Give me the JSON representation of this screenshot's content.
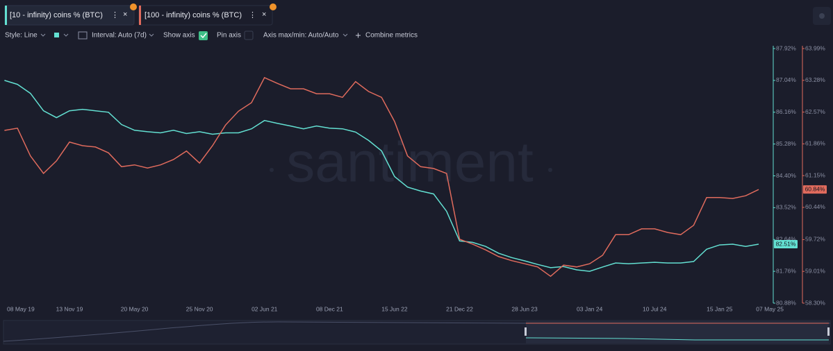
{
  "chart_data": {
    "type": "line",
    "watermark": "santiment",
    "categories": [
      "08 May 19",
      null,
      null,
      null,
      null,
      "13 Nov 19",
      null,
      null,
      null,
      null,
      "20 May 20",
      null,
      null,
      null,
      null,
      "25 Nov 20",
      null,
      null,
      null,
      null,
      "02 Jun 21",
      null,
      null,
      null,
      null,
      "08 Dec 21",
      null,
      null,
      null,
      null,
      "15 Jun 22",
      null,
      null,
      null,
      null,
      "21 Dec 22",
      null,
      null,
      null,
      null,
      "28 Jun 23",
      null,
      null,
      null,
      null,
      "03 Jan 24",
      null,
      null,
      null,
      null,
      "10 Jul 24",
      null,
      null,
      null,
      null,
      "15 Jan 25",
      null,
      null,
      "07 May 25"
    ],
    "series": [
      {
        "name": "[10 - infinity) coins % (BTC)",
        "color": "#63e0d2",
        "values": [
          87.04,
          86.93,
          86.68,
          86.2,
          86.01,
          86.2,
          86.24,
          86.2,
          86.16,
          85.82,
          85.66,
          85.62,
          85.59,
          85.66,
          85.57,
          85.62,
          85.55,
          85.59,
          85.59,
          85.7,
          85.93,
          85.85,
          85.78,
          85.7,
          85.78,
          85.72,
          85.7,
          85.61,
          85.38,
          85.09,
          84.38,
          84.09,
          83.98,
          83.9,
          83.42,
          82.6,
          82.56,
          82.45,
          82.26,
          82.14,
          82.05,
          81.95,
          81.86,
          81.89,
          81.8,
          81.76,
          81.88,
          81.99,
          81.97,
          81.99,
          82.01,
          81.99,
          81.99,
          82.03,
          82.37,
          82.49,
          82.51,
          82.45,
          82.51
        ],
        "value_labels": [
          null,
          null,
          null,
          null,
          null,
          null,
          null,
          null,
          null,
          null,
          null,
          null,
          null,
          null,
          null,
          null,
          null,
          null,
          null,
          null,
          null,
          null,
          null,
          null,
          null,
          null,
          null,
          null,
          null,
          null,
          null,
          null,
          null,
          null,
          null,
          null,
          null,
          null,
          null,
          null,
          null,
          null,
          null,
          null,
          null,
          null,
          null,
          null,
          null,
          null,
          null,
          null,
          null,
          null,
          null,
          null,
          null,
          null,
          "82.51%"
        ]
      },
      {
        "name": "[100 - infinity) coins % (BTC)",
        "color": "#e06b5d",
        "axis": "y2",
        "values": [
          62.16,
          62.21,
          61.59,
          61.2,
          61.48,
          61.9,
          61.82,
          61.79,
          61.66,
          61.35,
          61.39,
          61.32,
          61.39,
          61.51,
          61.7,
          61.43,
          61.82,
          62.28,
          62.59,
          62.78,
          63.34,
          63.21,
          63.09,
          63.09,
          62.98,
          62.98,
          62.9,
          63.25,
          63.03,
          62.9,
          62.36,
          61.59,
          61.35,
          61.31,
          61.2,
          59.73,
          59.62,
          59.49,
          59.34,
          59.25,
          59.18,
          59.11,
          58.9,
          59.15,
          59.11,
          59.18,
          59.37,
          59.83,
          59.83,
          59.96,
          59.96,
          59.88,
          59.83,
          60.04,
          60.66,
          60.66,
          60.64,
          60.7,
          60.84
        ],
        "value_labels": [
          null,
          null,
          null,
          null,
          null,
          null,
          null,
          null,
          null,
          null,
          null,
          null,
          null,
          null,
          null,
          null,
          null,
          null,
          null,
          null,
          null,
          null,
          null,
          null,
          null,
          null,
          null,
          null,
          null,
          null,
          null,
          null,
          null,
          null,
          null,
          null,
          null,
          null,
          null,
          null,
          null,
          null,
          null,
          null,
          null,
          null,
          null,
          null,
          null,
          null,
          null,
          null,
          null,
          null,
          null,
          null,
          null,
          null,
          "60.84%"
        ]
      }
    ],
    "ylim": [
      80.88,
      87.92
    ],
    "yticks": [
      {
        "value": 87.92,
        "label": "87.92%"
      },
      {
        "value": 87.04,
        "label": "87.04%"
      },
      {
        "value": 86.16,
        "label": "86.16%"
      },
      {
        "value": 85.28,
        "label": "85.28%"
      },
      {
        "value": 84.4,
        "label": "84.40%"
      },
      {
        "value": 83.52,
        "label": "83.52%"
      },
      {
        "value": 82.64,
        "label": "82.64%"
      },
      {
        "value": 81.76,
        "label": "81.76%"
      },
      {
        "value": 80.88,
        "label": "80.88%"
      }
    ],
    "y2lim": [
      58.3,
      63.99
    ],
    "y2ticks": [
      {
        "value": 63.99,
        "label": "63.99%"
      },
      {
        "value": 63.28,
        "label": "63.28%"
      },
      {
        "value": 62.57,
        "label": "62.57%"
      },
      {
        "value": 61.86,
        "label": "61.86%"
      },
      {
        "value": 61.15,
        "label": "61.15%"
      },
      {
        "value": 60.44,
        "label": "60.44%"
      },
      {
        "value": 59.72,
        "label": "59.72%"
      },
      {
        "value": 59.01,
        "label": "59.01%"
      },
      {
        "value": 58.3,
        "label": "58.30%"
      }
    ]
  },
  "toolbar": {
    "style": "Style: Line",
    "interval": "Interval: Auto (7d)",
    "show_axis": "Show axis",
    "pin_axis": "Pin axis",
    "axis_range": "Axis max/min: Auto/Auto",
    "combine": "Combine metrics"
  }
}
